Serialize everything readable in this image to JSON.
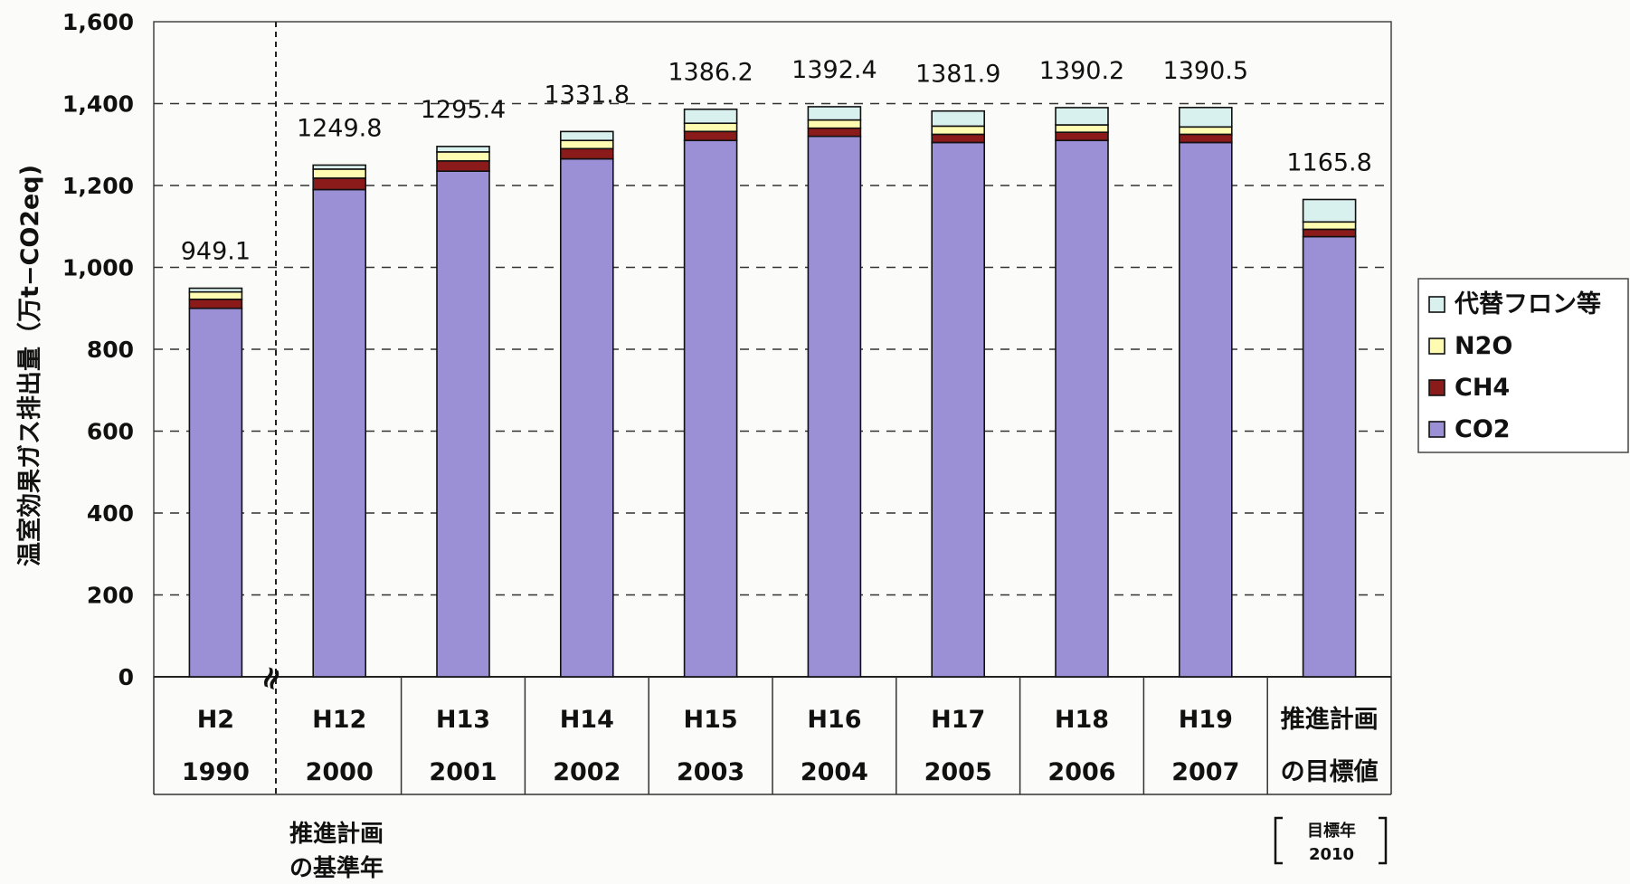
{
  "chart_data": {
    "type": "bar",
    "stacked": true,
    "ylabel": "温室効果ガス排出量（万t−CO2eq)",
    "ylim": [
      0,
      1600
    ],
    "yticks": [
      "0",
      "200",
      "400",
      "600",
      "800",
      "1,000",
      "1,200",
      "1,400",
      "1,600"
    ],
    "grid": true,
    "legend_position": "right",
    "categories": [
      {
        "era": "H2",
        "year": "1990"
      },
      {
        "era": "H12",
        "year": "2000"
      },
      {
        "era": "H13",
        "year": "2001"
      },
      {
        "era": "H14",
        "year": "2002"
      },
      {
        "era": "H15",
        "year": "2003"
      },
      {
        "era": "H16",
        "year": "2004"
      },
      {
        "era": "H17",
        "year": "2005"
      },
      {
        "era": "H18",
        "year": "2006"
      },
      {
        "era": "H19",
        "year": "2007"
      },
      {
        "era": "推進計画",
        "year": "の目標値"
      }
    ],
    "totals": [
      "949.1",
      "1249.8",
      "1295.4",
      "1331.8",
      "1386.2",
      "1392.4",
      "1381.9",
      "1390.2",
      "1390.5",
      "1165.8"
    ],
    "series": [
      {
        "name": "CO2",
        "color": "#9b8fd6",
        "values": [
          900,
          1190,
          1235,
          1265,
          1310,
          1320,
          1305,
          1310,
          1305,
          1075
        ]
      },
      {
        "name": "CH4",
        "color": "#8b1a1a",
        "values": [
          22,
          28,
          25,
          25,
          22,
          20,
          20,
          20,
          20,
          18
        ]
      },
      {
        "name": "N2O",
        "color": "#fffbb0",
        "values": [
          18,
          22,
          22,
          20,
          20,
          20,
          20,
          18,
          18,
          18
        ]
      },
      {
        "name": "代替フロン等",
        "color": "#d8f0ee",
        "values": [
          9.1,
          9.8,
          13.4,
          21.8,
          34.2,
          32.4,
          36.9,
          42.2,
          47.5,
          54.8
        ]
      }
    ],
    "legend_order": [
      "代替フロン等",
      "N2O",
      "CH4",
      "CO2"
    ],
    "annotations": {
      "base_year_line1": "推進計画",
      "base_year_line2": "の基準年",
      "target_year_label": "目標年",
      "target_year_value": "2010",
      "break_mark": "≈"
    }
  }
}
